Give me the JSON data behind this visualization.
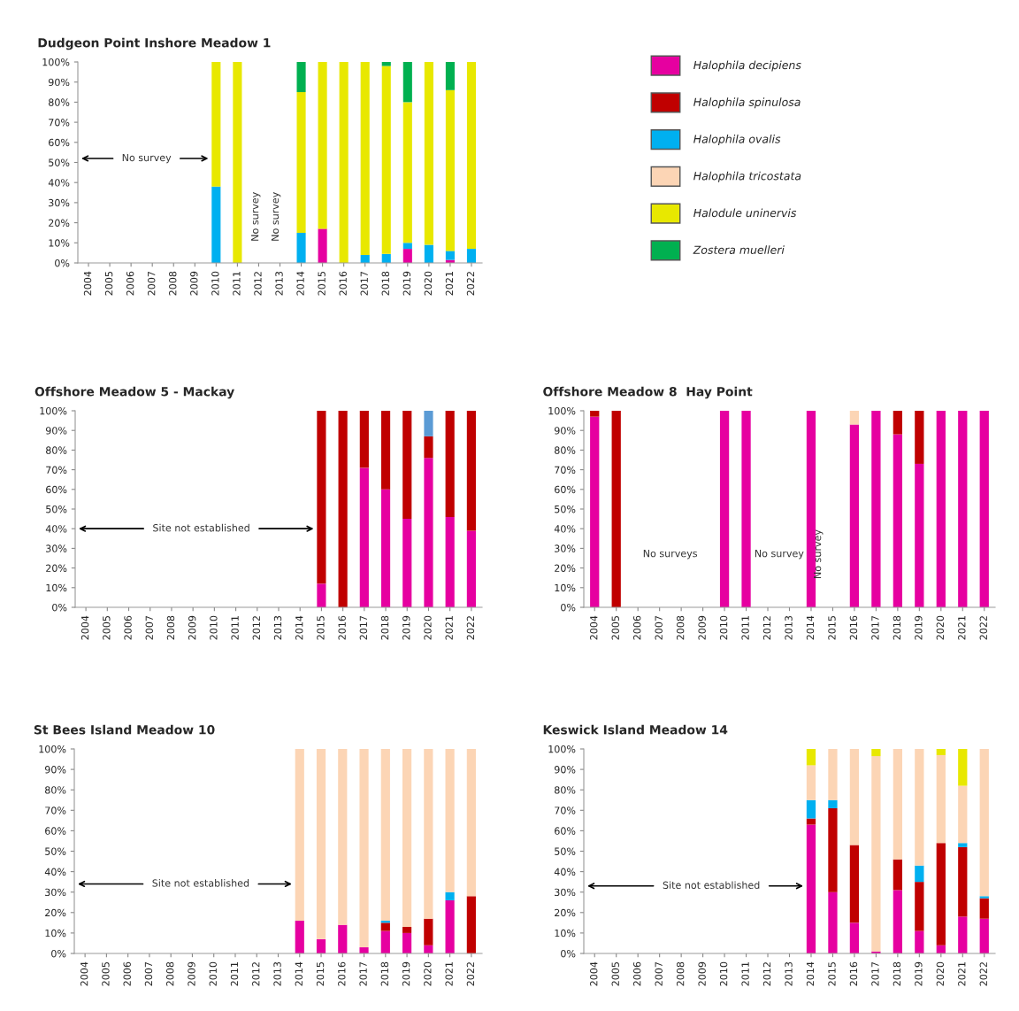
{
  "chart_data": [
    {
      "type": "bar",
      "stacked": true,
      "title": "Dudgeon Point Inshore Meadow 1",
      "categories": [
        "2004",
        "2005",
        "2006",
        "2007",
        "2008",
        "2009",
        "2010",
        "2011",
        "2012",
        "2013",
        "2014",
        "2015",
        "2016",
        "2017",
        "2018",
        "2019",
        "2020",
        "2021",
        "2022"
      ],
      "ylim": [
        0,
        100
      ],
      "yticks": [
        {
          "value": 0,
          "label": "0%"
        },
        {
          "value": 10,
          "label": "10%"
        },
        {
          "value": 20,
          "label": "20%"
        },
        {
          "value": 30,
          "label": "30%"
        },
        {
          "value": 40,
          "label": "40%"
        },
        {
          "value": 50,
          "label": "50%"
        },
        {
          "value": 60,
          "label": "60%"
        },
        {
          "value": 70,
          "label": "70%"
        },
        {
          "value": 80,
          "label": "80%"
        },
        {
          "value": 90,
          "label": "90%"
        },
        {
          "value": 100,
          "label": "100%"
        }
      ],
      "legend": "right",
      "series": [
        {
          "name": "Halophila decipiens",
          "color": "#e600a0",
          "values": [
            null,
            null,
            null,
            null,
            null,
            null,
            null,
            null,
            null,
            null,
            null,
            17,
            null,
            null,
            null,
            7,
            null,
            1.5,
            null
          ]
        },
        {
          "name": "Halophila spinulosa",
          "color": "#c00000",
          "values": [
            null,
            null,
            null,
            null,
            null,
            null,
            null,
            null,
            null,
            null,
            null,
            null,
            null,
            null,
            null,
            null,
            null,
            null,
            null
          ]
        },
        {
          "name": "Halophila ovalis",
          "color": "#00b0f0",
          "values": [
            null,
            null,
            null,
            null,
            null,
            null,
            38,
            null,
            null,
            null,
            15,
            null,
            null,
            4,
            4.5,
            3,
            9,
            4.5,
            7
          ]
        },
        {
          "name": "Halophila tricostata",
          "color": "#fcd5b5",
          "values": [
            null,
            null,
            null,
            null,
            null,
            null,
            null,
            null,
            null,
            null,
            null,
            null,
            null,
            null,
            null,
            null,
            null,
            null,
            null
          ]
        },
        {
          "name": "Halodule uninervis",
          "color": "#e8e800",
          "values": [
            null,
            null,
            null,
            null,
            null,
            null,
            62,
            100,
            null,
            null,
            70,
            83,
            100,
            96,
            93.5,
            70,
            91,
            80,
            93
          ]
        },
        {
          "name": "Zostera muelleri",
          "color": "#00b050",
          "values": [
            null,
            null,
            null,
            null,
            null,
            null,
            null,
            null,
            null,
            null,
            15,
            null,
            null,
            null,
            2,
            20,
            null,
            14,
            null
          ]
        }
      ],
      "annotations": [
        "No survey",
        "No survey",
        "No survey"
      ]
    },
    {
      "type": "bar",
      "stacked": true,
      "title": "Offshore Meadow 5 - Mackay",
      "categories": [
        "2004",
        "2005",
        "2006",
        "2007",
        "2008",
        "2009",
        "2010",
        "2011",
        "2012",
        "2013",
        "2014",
        "2015",
        "2016",
        "2017",
        "2018",
        "2019",
        "2020",
        "2021",
        "2022"
      ],
      "ylim": [
        0,
        100
      ],
      "yticks": [
        {
          "value": 0,
          "label": "0%"
        },
        {
          "value": 10,
          "label": "10%"
        },
        {
          "value": 20,
          "label": "20%"
        },
        {
          "value": 30,
          "label": "30%"
        },
        {
          "value": 40,
          "label": "40%"
        },
        {
          "value": 50,
          "label": "50%"
        },
        {
          "value": 60,
          "label": "60%"
        },
        {
          "value": 70,
          "label": "70%"
        },
        {
          "value": 80,
          "label": "80%"
        },
        {
          "value": 90,
          "label": "90%"
        },
        {
          "value": 100,
          "label": "100%"
        }
      ],
      "series": [
        {
          "color": "#e600a0",
          "values": [
            null,
            null,
            null,
            null,
            null,
            null,
            null,
            null,
            null,
            null,
            null,
            12,
            null,
            71,
            60,
            45,
            76,
            46,
            39
          ]
        },
        {
          "color": "#c00000",
          "values": [
            null,
            null,
            null,
            null,
            null,
            null,
            null,
            null,
            null,
            null,
            null,
            88,
            100,
            29,
            40,
            55,
            11,
            54,
            61
          ]
        },
        {
          "color": "#5b9bd5",
          "values": [
            null,
            null,
            null,
            null,
            null,
            null,
            null,
            null,
            null,
            null,
            null,
            null,
            null,
            null,
            null,
            null,
            13,
            null,
            null
          ]
        }
      ],
      "annotations": [
        "Site not established"
      ]
    },
    {
      "type": "bar",
      "stacked": true,
      "title": "Offshore Meadow 8  Hay Point",
      "categories": [
        "2004",
        "2005",
        "2006",
        "2007",
        "2008",
        "2009",
        "2010",
        "2011",
        "2012",
        "2013",
        "2014",
        "2015",
        "2016",
        "2017",
        "2018",
        "2019",
        "2020",
        "2021",
        "2022"
      ],
      "ylim": [
        0,
        100
      ],
      "yticks": [
        {
          "value": 0,
          "label": "0%"
        },
        {
          "value": 10,
          "label": "10%"
        },
        {
          "value": 20,
          "label": "20%"
        },
        {
          "value": 30,
          "label": "30%"
        },
        {
          "value": 40,
          "label": "40%"
        },
        {
          "value": 50,
          "label": "50%"
        },
        {
          "value": 60,
          "label": "60%"
        },
        {
          "value": 70,
          "label": "70%"
        },
        {
          "value": 80,
          "label": "80%"
        },
        {
          "value": 90,
          "label": "90%"
        },
        {
          "value": 100,
          "label": "100%"
        }
      ],
      "series": [
        {
          "color": "#e600a0",
          "values": [
            97,
            null,
            null,
            null,
            null,
            null,
            100,
            100,
            null,
            null,
            100,
            null,
            93,
            100,
            88,
            73,
            100,
            100,
            100
          ]
        },
        {
          "color": "#c00000",
          "values": [
            3,
            100,
            null,
            null,
            null,
            null,
            null,
            null,
            null,
            null,
            null,
            null,
            null,
            null,
            12,
            27,
            null,
            null,
            null
          ]
        },
        {
          "color": "#fcd5b5",
          "values": [
            null,
            null,
            null,
            null,
            null,
            null,
            null,
            null,
            null,
            null,
            null,
            null,
            7,
            null,
            null,
            null,
            null,
            null,
            null
          ]
        }
      ],
      "annotations": [
        "No surveys",
        "No survey",
        "No survey"
      ]
    },
    {
      "type": "bar",
      "stacked": true,
      "title": "St Bees Island Meadow 10",
      "categories": [
        "2004",
        "2005",
        "2006",
        "2007",
        "2008",
        "2009",
        "2010",
        "2011",
        "2012",
        "2013",
        "2014",
        "2015",
        "2016",
        "2017",
        "2018",
        "2019",
        "2020",
        "2021",
        "2022"
      ],
      "ylim": [
        0,
        100
      ],
      "yticks": [
        {
          "value": 0,
          "label": "0%"
        },
        {
          "value": 10,
          "label": "10%"
        },
        {
          "value": 20,
          "label": "20%"
        },
        {
          "value": 30,
          "label": "30%"
        },
        {
          "value": 40,
          "label": "40%"
        },
        {
          "value": 50,
          "label": "50%"
        },
        {
          "value": 60,
          "label": "60%"
        },
        {
          "value": 70,
          "label": "70%"
        },
        {
          "value": 80,
          "label": "80%"
        },
        {
          "value": 90,
          "label": "90%"
        },
        {
          "value": 100,
          "label": "100%"
        }
      ],
      "series": [
        {
          "color": "#e600a0",
          "values": [
            null,
            null,
            null,
            null,
            null,
            null,
            null,
            null,
            null,
            null,
            16,
            7,
            14,
            3,
            11,
            10,
            4,
            26,
            null
          ]
        },
        {
          "color": "#c00000",
          "values": [
            null,
            null,
            null,
            null,
            null,
            null,
            null,
            null,
            null,
            null,
            null,
            null,
            null,
            null,
            4,
            3,
            13,
            null,
            28
          ]
        },
        {
          "color": "#00b0f0",
          "values": [
            null,
            null,
            null,
            null,
            null,
            null,
            null,
            null,
            null,
            null,
            null,
            null,
            null,
            null,
            1,
            null,
            null,
            4,
            null
          ]
        },
        {
          "color": "#fcd5b5",
          "values": [
            null,
            null,
            null,
            null,
            null,
            null,
            null,
            null,
            null,
            null,
            84,
            93,
            86,
            97,
            84,
            87,
            83,
            70,
            72
          ]
        }
      ],
      "annotations": [
        "Site not established"
      ]
    },
    {
      "type": "bar",
      "stacked": true,
      "title": "Keswick Island Meadow 14",
      "categories": [
        "2004",
        "2005",
        "2006",
        "2007",
        "2008",
        "2009",
        "2010",
        "2011",
        "2012",
        "2013",
        "2014",
        "2015",
        "2016",
        "2017",
        "2018",
        "2019",
        "2020",
        "2021",
        "2022"
      ],
      "ylim": [
        0,
        100
      ],
      "yticks": [
        {
          "value": 0,
          "label": "0%"
        },
        {
          "value": 10,
          "label": "10%"
        },
        {
          "value": 20,
          "label": "20%"
        },
        {
          "value": 30,
          "label": "30%"
        },
        {
          "value": 40,
          "label": "40%"
        },
        {
          "value": 50,
          "label": "50%"
        },
        {
          "value": 60,
          "label": "60%"
        },
        {
          "value": 70,
          "label": "70%"
        },
        {
          "value": 80,
          "label": "80%"
        },
        {
          "value": 90,
          "label": "90%"
        },
        {
          "value": 100,
          "label": "100%"
        }
      ],
      "series": [
        {
          "color": "#e600a0",
          "values": [
            null,
            null,
            null,
            null,
            null,
            null,
            null,
            null,
            null,
            null,
            63,
            30,
            15,
            1,
            31,
            11,
            4,
            18,
            17
          ]
        },
        {
          "color": "#c00000",
          "values": [
            null,
            null,
            null,
            null,
            null,
            null,
            null,
            null,
            null,
            null,
            3,
            41,
            38,
            null,
            15,
            24,
            50,
            34,
            10
          ]
        },
        {
          "color": "#00b0f0",
          "values": [
            null,
            null,
            null,
            null,
            null,
            null,
            null,
            null,
            null,
            null,
            9,
            4,
            null,
            null,
            null,
            8,
            null,
            2,
            1
          ]
        },
        {
          "color": "#fcd5b5",
          "values": [
            null,
            null,
            null,
            null,
            null,
            null,
            null,
            null,
            null,
            null,
            17,
            25,
            47,
            95.5,
            54,
            57,
            43,
            28,
            72
          ]
        },
        {
          "color": "#e8e800",
          "values": [
            null,
            null,
            null,
            null,
            null,
            null,
            null,
            null,
            null,
            null,
            8,
            null,
            null,
            3.5,
            null,
            null,
            3,
            18,
            null
          ]
        }
      ],
      "annotations": [
        "Site not established"
      ]
    }
  ]
}
